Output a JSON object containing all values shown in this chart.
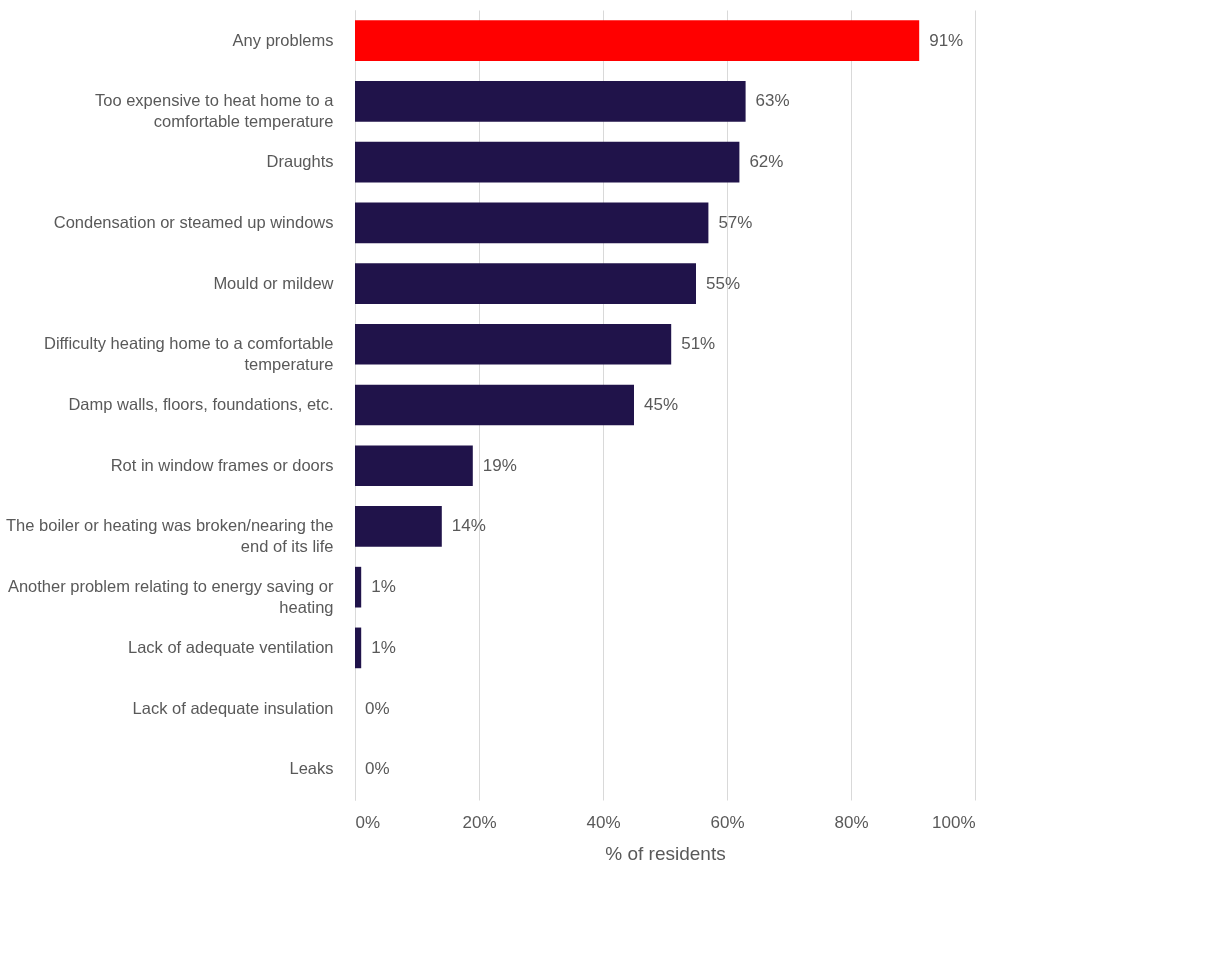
{
  "chart_data": {
    "type": "bar",
    "orientation": "horizontal",
    "categories": [
      "Any problems",
      "Too expensive to heat home to a\ncomfortable temperature",
      "Draughts",
      "Condensation or steamed up windows",
      "Mould or mildew",
      "Difficulty heating home to a comfortable\ntemperature",
      "Damp walls, floors, foundations, etc.",
      "Rot in window frames or doors",
      "The boiler or heating was broken/nearing the\nend of its life",
      "Another problem relating to energy saving or\nheating",
      "Lack of adequate ventilation",
      "Lack of adequate insulation",
      "Leaks"
    ],
    "values": [
      91,
      63,
      62,
      57,
      55,
      51,
      45,
      19,
      14,
      1,
      1,
      0,
      0
    ],
    "colors": [
      "#ff0000",
      "#20134a",
      "#20134a",
      "#20134a",
      "#20134a",
      "#20134a",
      "#20134a",
      "#20134a",
      "#20134a",
      "#20134a",
      "#20134a",
      "#20134a",
      "#20134a"
    ],
    "value_labels": [
      "91%",
      "63%",
      "62%",
      "57%",
      "55%",
      "51%",
      "45%",
      "19%",
      "14%",
      "1%",
      "1%",
      "0%",
      "0%"
    ],
    "xlabel": "% of residents",
    "xlim": [
      0,
      100
    ],
    "xticks": [
      {
        "value": 0,
        "label": "0%"
      },
      {
        "value": 20,
        "label": "20%"
      },
      {
        "value": 40,
        "label": "40%"
      },
      {
        "value": 60,
        "label": "60%"
      },
      {
        "value": 80,
        "label": "80%"
      },
      {
        "value": 100,
        "label": "100%"
      }
    ],
    "grid": "x"
  }
}
